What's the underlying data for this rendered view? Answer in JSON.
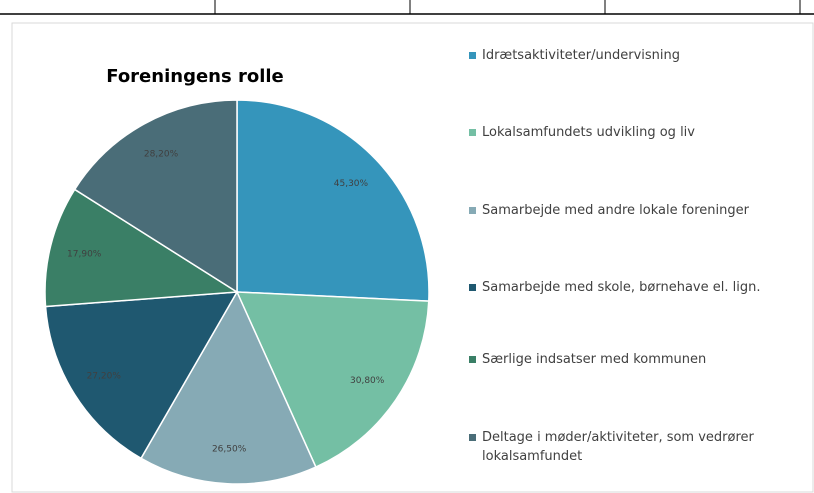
{
  "chart_data": {
    "type": "pie",
    "title": "Foreningens rolle",
    "categories": [
      "Idrætsaktiviteter/undervisning",
      "Lokalsamfundets udvikling og liv",
      "Samarbejde med andre lokale foreninger",
      "Samarbejde med skole, børnehave el. lign.",
      "Særlige indsatser med kommunen",
      "Deltage i møder/aktiviteter, som vedrører lokalsamfundet"
    ],
    "values": [
      45.3,
      30.8,
      26.5,
      27.2,
      17.9,
      28.2
    ],
    "value_labels": [
      "45,30%",
      "30,80%",
      "26,50%",
      "27,20%",
      "17,90%",
      "28,20%"
    ],
    "colors": [
      "#3595bb",
      "#74bfa4",
      "#86aab5",
      "#1f5870",
      "#3a7f66",
      "#4a6d78"
    ],
    "legend": "right"
  }
}
